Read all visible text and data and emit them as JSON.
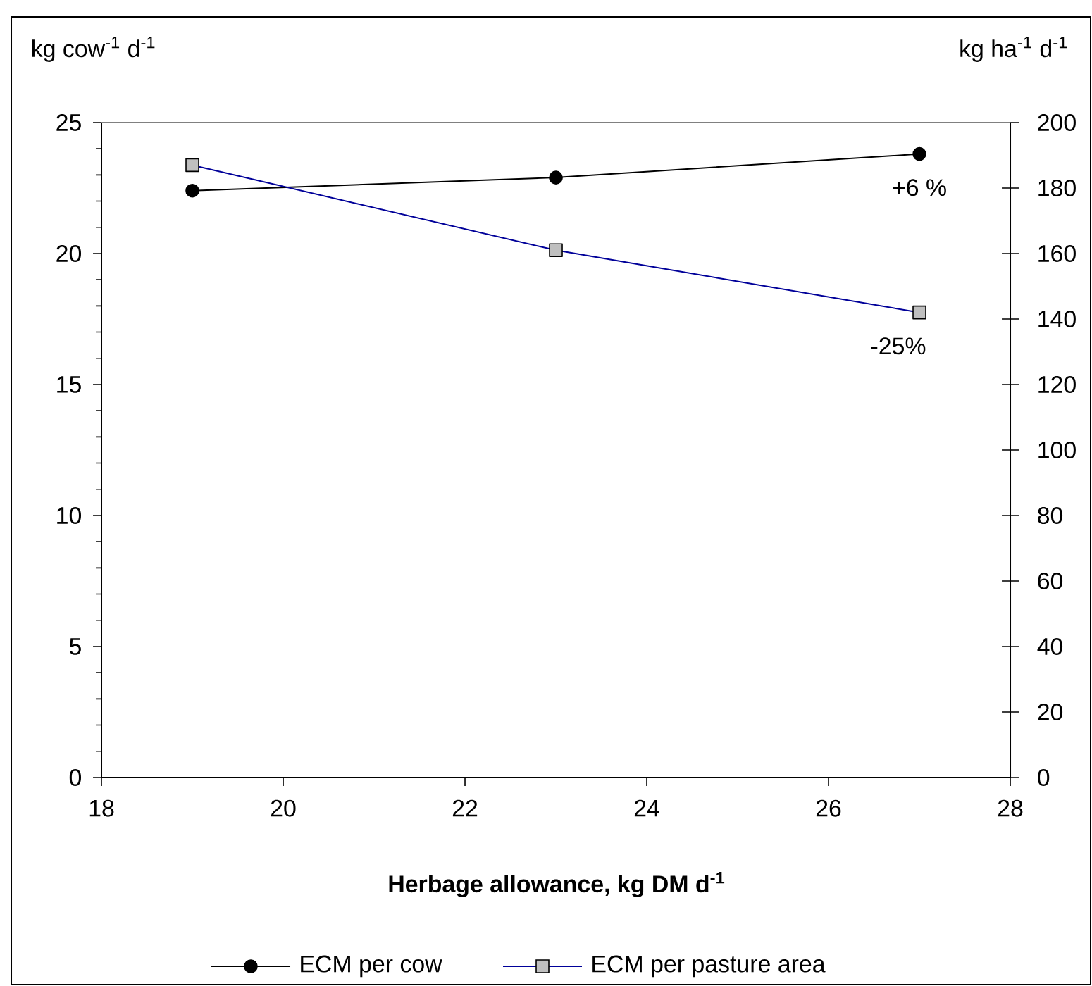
{
  "chart_data": {
    "type": "line",
    "xlabel": "Herbage allowance, kg DM d$^{-1}$",
    "ylabel": "kg cow$^{-1}$ d$^{-1}$",
    "y2label": "kg ha$^{-1}$ d$^{-1}$",
    "x": [
      19,
      23,
      27
    ],
    "series": [
      {
        "name": "ECM per cow",
        "color": "#000000",
        "marker": "circle",
        "values": [
          22.4,
          22.9,
          23.8
        ]
      },
      {
        "name": "ECM per pasture area",
        "color": "#000099",
        "marker": "square",
        "axis": "y2",
        "values": [
          187,
          161,
          142
        ]
      }
    ],
    "annotations": [
      "+6 %",
      "-25%"
    ],
    "xlim": [
      18,
      28
    ],
    "xticks": [
      18,
      20,
      22,
      24,
      26,
      28
    ],
    "ylim": [
      0,
      25
    ],
    "yticks": [
      0,
      5,
      10,
      15,
      20,
      25
    ],
    "y2lim": [
      0,
      200
    ],
    "y2ticks": [
      0,
      20,
      40,
      60,
      80,
      100,
      120,
      140,
      160,
      180,
      200
    ],
    "grid": false,
    "legend": "bottom",
    "line_style": "solid"
  }
}
